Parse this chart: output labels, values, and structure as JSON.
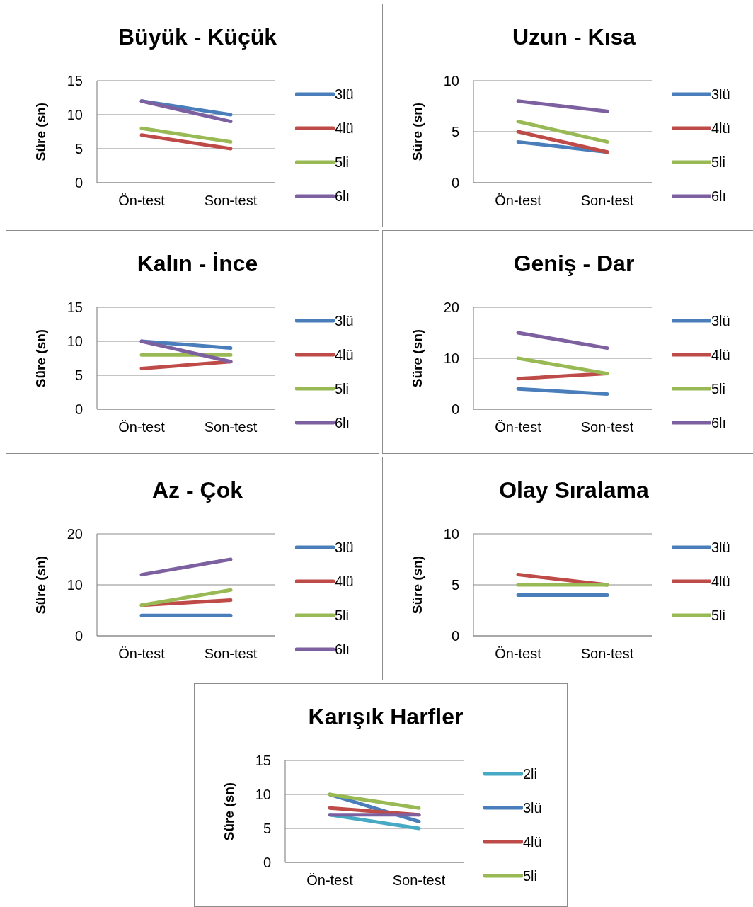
{
  "chart_data": [
    {
      "type": "line",
      "title": "Büyük - Küçük",
      "ylabel": "Süre (sn)",
      "categories": [
        "Ön-test",
        "Son-test"
      ],
      "ylim": [
        0,
        15
      ],
      "yticks": [
        0,
        5,
        10,
        15
      ],
      "grid": "y",
      "legend": "right",
      "series": [
        {
          "name": "3lü",
          "color": "#4a7ebb",
          "values": [
            12,
            10
          ]
        },
        {
          "name": "4lü",
          "color": "#be4b48",
          "values": [
            7,
            5
          ]
        },
        {
          "name": "5li",
          "color": "#98b954",
          "values": [
            8,
            6
          ]
        },
        {
          "name": "6lı",
          "color": "#7d60a0",
          "values": [
            12,
            9
          ]
        }
      ]
    },
    {
      "type": "line",
      "title": "Uzun - Kısa",
      "ylabel": "Süre (sn)",
      "categories": [
        "Ön-test",
        "Son-test"
      ],
      "ylim": [
        0,
        10
      ],
      "yticks": [
        0,
        5,
        10
      ],
      "grid": "y",
      "legend": "right",
      "series": [
        {
          "name": "3lü",
          "color": "#4a7ebb",
          "values": [
            4,
            3
          ]
        },
        {
          "name": "4lü",
          "color": "#be4b48",
          "values": [
            5,
            3
          ]
        },
        {
          "name": "5li",
          "color": "#98b954",
          "values": [
            6,
            4
          ]
        },
        {
          "name": "6lı",
          "color": "#7d60a0",
          "values": [
            8,
            7
          ]
        }
      ]
    },
    {
      "type": "line",
      "title": "Kalın - İnce",
      "ylabel": "Süre (sn)",
      "categories": [
        "Ön-test",
        "Son-test"
      ],
      "ylim": [
        0,
        15
      ],
      "yticks": [
        0,
        5,
        10,
        15
      ],
      "grid": "y",
      "legend": "right",
      "series": [
        {
          "name": "3lü",
          "color": "#4a7ebb",
          "values": [
            10,
            9
          ]
        },
        {
          "name": "4lü",
          "color": "#be4b48",
          "values": [
            6,
            7
          ]
        },
        {
          "name": "5li",
          "color": "#98b954",
          "values": [
            8,
            8
          ]
        },
        {
          "name": "6lı",
          "color": "#7d60a0",
          "values": [
            10,
            7
          ]
        }
      ]
    },
    {
      "type": "line",
      "title": "Geniş - Dar",
      "ylabel": "Süre (sn)",
      "categories": [
        "Ön-test",
        "Son-test"
      ],
      "ylim": [
        0,
        20
      ],
      "yticks": [
        0,
        10,
        20
      ],
      "grid": "y",
      "legend": "right",
      "series": [
        {
          "name": "3lü",
          "color": "#4a7ebb",
          "values": [
            4,
            3
          ]
        },
        {
          "name": "4lü",
          "color": "#be4b48",
          "values": [
            6,
            7
          ]
        },
        {
          "name": "5li",
          "color": "#98b954",
          "values": [
            10,
            7
          ]
        },
        {
          "name": "6lı",
          "color": "#7d60a0",
          "values": [
            15,
            12
          ]
        }
      ]
    },
    {
      "type": "line",
      "title": "Az - Çok",
      "ylabel": "Süre (sn)",
      "categories": [
        "Ön-test",
        "Son-test"
      ],
      "ylim": [
        0,
        20
      ],
      "yticks": [
        0,
        10,
        20
      ],
      "grid": "y",
      "legend": "right",
      "series": [
        {
          "name": "3lü",
          "color": "#4a7ebb",
          "values": [
            4,
            4
          ]
        },
        {
          "name": "4lü",
          "color": "#be4b48",
          "values": [
            6,
            7
          ]
        },
        {
          "name": "5li",
          "color": "#98b954",
          "values": [
            6,
            9
          ]
        },
        {
          "name": "6lı",
          "color": "#7d60a0",
          "values": [
            12,
            15
          ]
        }
      ]
    },
    {
      "type": "line",
      "title": "Olay Sıralama",
      "ylabel": "Süre (sn)",
      "categories": [
        "Ön-test",
        "Son-test"
      ],
      "ylim": [
        0,
        10
      ],
      "yticks": [
        0,
        5,
        10
      ],
      "grid": "y",
      "legend": "right",
      "series": [
        {
          "name": "3lü",
          "color": "#4a7ebb",
          "values": [
            4,
            4
          ]
        },
        {
          "name": "4lü",
          "color": "#be4b48",
          "values": [
            6,
            5
          ]
        },
        {
          "name": "5li",
          "color": "#98b954",
          "values": [
            5,
            5
          ]
        }
      ]
    },
    {
      "type": "line",
      "title": "Karışık Harfler",
      "ylabel": "Süre (sn)",
      "categories": [
        "Ön-test",
        "Son-test"
      ],
      "ylim": [
        0,
        15
      ],
      "yticks": [
        0,
        5,
        10,
        15
      ],
      "grid": "y",
      "legend": "right",
      "series": [
        {
          "name": "2li",
          "color": "#46aac5",
          "values": [
            7,
            5
          ]
        },
        {
          "name": "3lü",
          "color": "#4a7ebb",
          "values": [
            10,
            6
          ]
        },
        {
          "name": "4lü",
          "color": "#be4b48",
          "values": [
            8,
            7
          ]
        },
        {
          "name": "5li",
          "color": "#98b954",
          "values": [
            10,
            8
          ]
        },
        {
          "color": "#7d60a0",
          "values": [
            7,
            7
          ]
        }
      ]
    }
  ]
}
